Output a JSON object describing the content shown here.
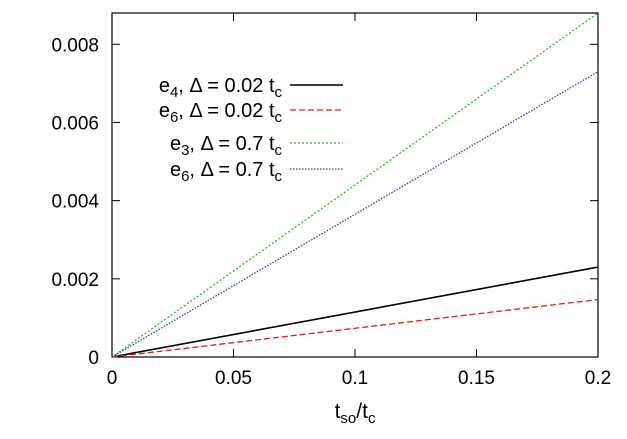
{
  "chart_data": {
    "type": "line",
    "title": "",
    "xlabel": {
      "main": "t",
      "sub": "so",
      "sep": "/",
      "main2": "t",
      "sub2": "c"
    },
    "ylabel": "",
    "xlim": [
      0,
      0.2
    ],
    "ylim": [
      0,
      0.0088
    ],
    "x_ticks": [
      "0",
      "0.05",
      "0.1",
      "0.15",
      "0.2"
    ],
    "y_ticks": [
      "0",
      "0.002",
      "0.004",
      "0.006",
      "0.008"
    ],
    "grid": false,
    "legend_position": "top-left",
    "series": [
      {
        "name": "e4, Δ = 0.02 tc",
        "label_parts": {
          "sym": "e",
          "sub": "4",
          "mid": ", Δ = 0.02 t",
          "sub2": "c"
        },
        "color": "#000000",
        "dash": "solid",
        "x": [
          0,
          0.2
        ],
        "y": [
          0,
          0.0023
        ]
      },
      {
        "name": "e6, Δ = 0.02 tc",
        "label_parts": {
          "sym": "e",
          "sub": "6",
          "mid": ", Δ = 0.02 t",
          "sub2": "c"
        },
        "color": "#e8161b",
        "dash": "dashed",
        "x": [
          0,
          0.2
        ],
        "y": [
          0,
          0.00147
        ]
      },
      {
        "name": "e3, Δ = 0.7 tc",
        "label_parts": {
          "sym": "e",
          "sub": "3",
          "mid": ", Δ = 0.7 t",
          "sub2": "c"
        },
        "color": "#22bb22",
        "dash": "dotted",
        "x": [
          0,
          0.2
        ],
        "y": [
          0,
          0.0088
        ]
      },
      {
        "name": "e6, Δ = 0.7 tc",
        "label_parts": {
          "sym": "e",
          "sub": "6",
          "mid": ", Δ = 0.7 t",
          "sub2": "c"
        },
        "color": "#2a35e0",
        "dash": "dotted-fine",
        "x": [
          0,
          0.2
        ],
        "y": [
          0,
          0.0073
        ]
      }
    ]
  }
}
